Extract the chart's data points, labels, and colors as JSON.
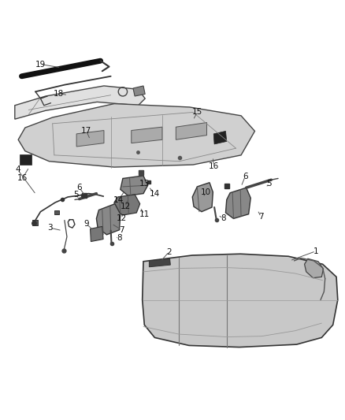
{
  "bg_color": "#ffffff",
  "line_color": "#333333",
  "fig_width": 4.38,
  "fig_height": 5.33,
  "dpi": 100
}
